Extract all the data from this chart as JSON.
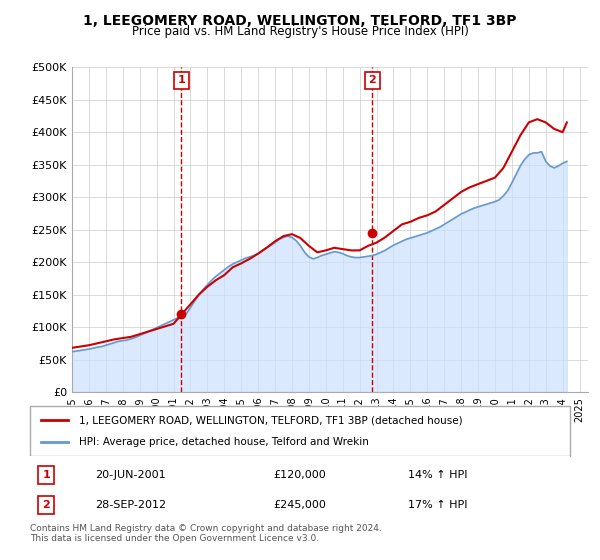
{
  "title": "1, LEEGOMERY ROAD, WELLINGTON, TELFORD, TF1 3BP",
  "subtitle": "Price paid vs. HM Land Registry's House Price Index (HPI)",
  "xlabel": "",
  "ylabel": "",
  "ylim": [
    0,
    500000
  ],
  "yticks": [
    0,
    50000,
    100000,
    150000,
    200000,
    250000,
    300000,
    350000,
    400000,
    450000,
    500000
  ],
  "ytick_labels": [
    "£0",
    "£50K",
    "£100K",
    "£150K",
    "£200K",
    "£250K",
    "£300K",
    "£350K",
    "£400K",
    "£450K",
    "£500K"
  ],
  "xlim_start": 1995.0,
  "xlim_end": 2025.5,
  "sale1_x": 2001.47,
  "sale1_y": 120000,
  "sale1_label": "1",
  "sale1_date": "20-JUN-2001",
  "sale1_price": "£120,000",
  "sale1_hpi": "14% ↑ HPI",
  "sale2_x": 2012.75,
  "sale2_y": 245000,
  "sale2_label": "2",
  "sale2_date": "28-SEP-2012",
  "sale2_price": "£245,000",
  "sale2_hpi": "17% ↑ HPI",
  "line1_color": "#cc0000",
  "line2_color": "#6699cc",
  "fill_color": "#cce0ff",
  "grid_color": "#cccccc",
  "bg_color": "#ffffff",
  "legend1": "1, LEEGOMERY ROAD, WELLINGTON, TELFORD, TF1 3BP (detached house)",
  "legend2": "HPI: Average price, detached house, Telford and Wrekin",
  "footer": "Contains HM Land Registry data © Crown copyright and database right 2024.\nThis data is licensed under the Open Government Licence v3.0.",
  "hpi_years": [
    1995,
    1995.25,
    1995.5,
    1995.75,
    1996,
    1996.25,
    1996.5,
    1996.75,
    1997,
    1997.25,
    1997.5,
    1997.75,
    1998,
    1998.25,
    1998.5,
    1998.75,
    1999,
    1999.25,
    1999.5,
    1999.75,
    2000,
    2000.25,
    2000.5,
    2000.75,
    2001,
    2001.25,
    2001.5,
    2001.75,
    2002,
    2002.25,
    2002.5,
    2002.75,
    2003,
    2003.25,
    2003.5,
    2003.75,
    2004,
    2004.25,
    2004.5,
    2004.75,
    2005,
    2005.25,
    2005.5,
    2005.75,
    2006,
    2006.25,
    2006.5,
    2006.75,
    2007,
    2007.25,
    2007.5,
    2007.75,
    2008,
    2008.25,
    2008.5,
    2008.75,
    2009,
    2009.25,
    2009.5,
    2009.75,
    2010,
    2010.25,
    2010.5,
    2010.75,
    2011,
    2011.25,
    2011.5,
    2011.75,
    2012,
    2012.25,
    2012.5,
    2012.75,
    2013,
    2013.25,
    2013.5,
    2013.75,
    2014,
    2014.25,
    2014.5,
    2014.75,
    2015,
    2015.25,
    2015.5,
    2015.75,
    2016,
    2016.25,
    2016.5,
    2016.75,
    2017,
    2017.25,
    2017.5,
    2017.75,
    2018,
    2018.25,
    2018.5,
    2018.75,
    2019,
    2019.25,
    2019.5,
    2019.75,
    2020,
    2020.25,
    2020.5,
    2020.75,
    2021,
    2021.25,
    2021.5,
    2021.75,
    2022,
    2022.25,
    2022.5,
    2022.75,
    2023,
    2023.25,
    2023.5,
    2023.75,
    2024,
    2024.25
  ],
  "hpi_values": [
    62000,
    63000,
    64000,
    65000,
    66000,
    67500,
    69000,
    70000,
    72000,
    74000,
    76000,
    78000,
    79000,
    80000,
    82000,
    84000,
    87000,
    90000,
    93000,
    96000,
    99000,
    102000,
    105000,
    108000,
    111000,
    114000,
    117000,
    120000,
    130000,
    140000,
    150000,
    158000,
    165000,
    172000,
    178000,
    183000,
    188000,
    193000,
    197000,
    200000,
    203000,
    206000,
    208000,
    210000,
    213000,
    218000,
    222000,
    226000,
    230000,
    235000,
    238000,
    240000,
    238000,
    233000,
    225000,
    215000,
    208000,
    205000,
    207000,
    210000,
    212000,
    214000,
    216000,
    215000,
    213000,
    210000,
    208000,
    207000,
    207000,
    208000,
    209000,
    210000,
    212000,
    215000,
    218000,
    222000,
    226000,
    229000,
    232000,
    235000,
    237000,
    239000,
    241000,
    243000,
    245000,
    248000,
    251000,
    254000,
    258000,
    262000,
    266000,
    270000,
    274000,
    277000,
    280000,
    283000,
    285000,
    287000,
    289000,
    291000,
    293000,
    296000,
    302000,
    310000,
    322000,
    335000,
    348000,
    358000,
    365000,
    368000,
    368000,
    370000,
    355000,
    348000,
    345000,
    348000,
    352000,
    355000
  ],
  "price_years": [
    1995,
    1995.5,
    1996,
    1996.5,
    1997,
    1997.5,
    1998,
    1998.5,
    1999,
    1999.5,
    2000,
    2000.5,
    2001,
    2001.5,
    2002,
    2002.5,
    2003,
    2003.5,
    2004,
    2004.5,
    2005,
    2005.5,
    2006,
    2006.5,
    2007,
    2007.5,
    2008,
    2008.5,
    2009,
    2009.5,
    2010,
    2010.5,
    2011,
    2011.5,
    2012,
    2012.5,
    2013,
    2013.5,
    2014,
    2014.5,
    2015,
    2015.5,
    2016,
    2016.5,
    2017,
    2017.5,
    2018,
    2018.5,
    2019,
    2019.5,
    2020,
    2020.5,
    2021,
    2021.5,
    2022,
    2022.5,
    2023,
    2023.5,
    2024,
    2024.25
  ],
  "price_values": [
    68000,
    70000,
    72000,
    75000,
    78000,
    81000,
    83000,
    85000,
    89000,
    93000,
    97000,
    101000,
    105000,
    120000,
    135000,
    150000,
    162000,
    172000,
    180000,
    192000,
    198000,
    205000,
    213000,
    222000,
    232000,
    240000,
    243000,
    237000,
    225000,
    215000,
    218000,
    222000,
    220000,
    218000,
    218000,
    225000,
    230000,
    238000,
    248000,
    258000,
    262000,
    268000,
    272000,
    278000,
    288000,
    298000,
    308000,
    315000,
    320000,
    325000,
    330000,
    345000,
    370000,
    395000,
    415000,
    420000,
    415000,
    405000,
    400000,
    415000
  ]
}
